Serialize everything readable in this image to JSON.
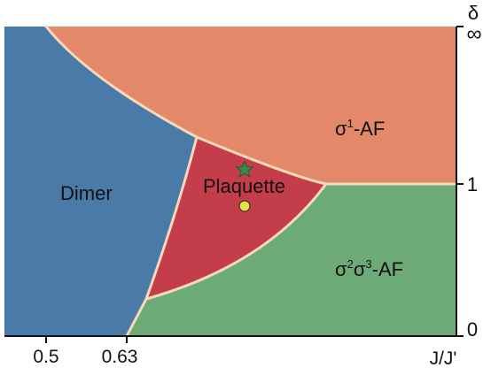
{
  "regions": {
    "dimer": {
      "label": "Dimer",
      "color": "#4a7aa7"
    },
    "plaquette": {
      "label": "Plaquette",
      "color": "#c33d4a"
    },
    "sigma1_af": {
      "base": "σ",
      "sup": "1",
      "suffix": "-AF",
      "color": "#e4886a"
    },
    "sigma23_af": {
      "base1": "σ",
      "sup1": "2",
      "base2": "σ",
      "sup2": "3",
      "suffix": "-AF",
      "color": "#6cab77"
    }
  },
  "boundary_color": "#f5d9b8",
  "axes": {
    "x": {
      "label": "J/J'",
      "ticks": [
        "0.5",
        "0.63"
      ]
    },
    "y": {
      "label": "δ",
      "ticks": [
        "∞",
        "1",
        "0"
      ]
    }
  },
  "markers": {
    "star": {
      "color": "#3a8a50",
      "icon": "star-icon"
    },
    "dot": {
      "color": "#e7e24a",
      "icon": "circle-icon"
    }
  }
}
